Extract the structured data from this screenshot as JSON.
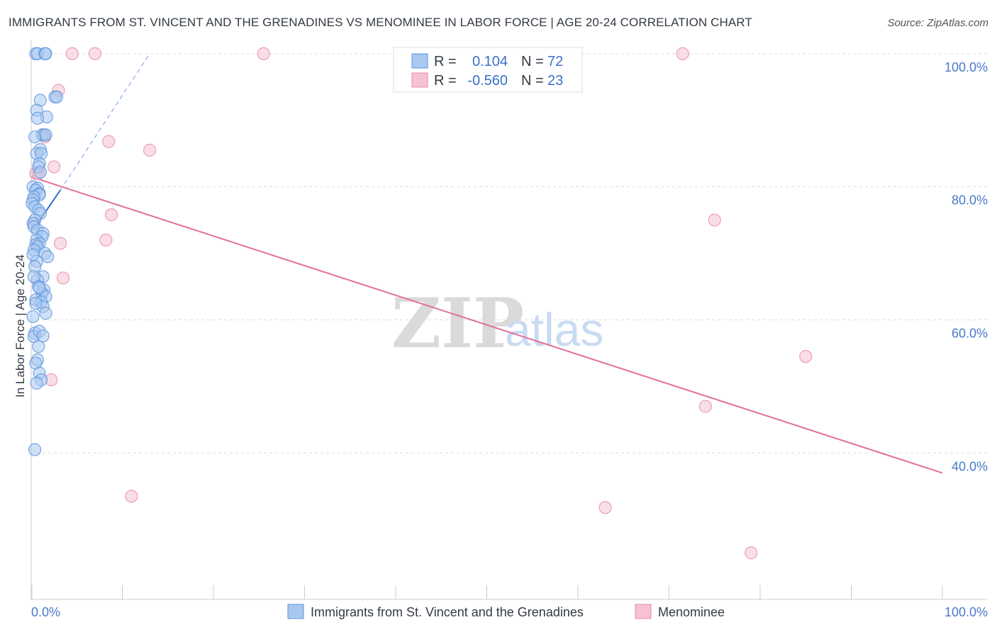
{
  "title": "IMMIGRANTS FROM ST. VINCENT AND THE GRENADINES VS MENOMINEE IN LABOR FORCE | AGE 20-24 CORRELATION CHART",
  "source": "Source: ZipAtlas.com",
  "watermark": {
    "zip": "ZIP",
    "atlas": "atlas"
  },
  "legend": {
    "r_label": "R =",
    "n_label": "N =",
    "series1": {
      "r": "0.104",
      "n": "72"
    },
    "series2": {
      "r": "-0.560",
      "n": "23"
    }
  },
  "colors": {
    "blue_fill": "#a9c8f0",
    "blue_stroke": "#5b93dc",
    "blue_line": "#2f6fd0",
    "pink_fill": "#f6c2d2",
    "pink_stroke": "#e88aa8",
    "pink_line": "#e0709a",
    "grid": "#dddddd",
    "tick_text": "#4a7ac8"
  },
  "chart_data": {
    "type": "scatter",
    "title": "IMMIGRANTS FROM ST. VINCENT AND THE GRENADINES VS MENOMINEE IN LABOR FORCE | AGE 20-24 CORRELATION CHART",
    "xlabel": "",
    "ylabel": "In Labor Force | Age 20-24",
    "xlim": [
      0,
      100
    ],
    "ylim": [
      18,
      102
    ],
    "x_tick_labels": [
      "0.0%",
      "100.0%"
    ],
    "y_ticks": [
      40,
      60,
      80,
      100
    ],
    "y_tick_labels": [
      "40.0%",
      "60.0%",
      "80.0%",
      "100.0%"
    ],
    "grid": true,
    "series": [
      {
        "name": "Immigrants from St. Vincent and the Grenadines",
        "color": "#5b93dc",
        "x": [
          0.5,
          0.7,
          1.5,
          1.6,
          2.6,
          2.8,
          1.0,
          0.6,
          1.7,
          0.7,
          1.2,
          1.4,
          1.6,
          0.4,
          1.0,
          0.6,
          1.1,
          0.9,
          0.8,
          1.0,
          0.2,
          0.7,
          0.5,
          0.9,
          0.9,
          0.3,
          0.2,
          0.1,
          0.4,
          0.8,
          1.0,
          0.4,
          0.2,
          0.3,
          0.7,
          1.3,
          1.2,
          0.6,
          0.9,
          0.5,
          0.7,
          0.3,
          1.5,
          1.8,
          0.6,
          0.4,
          1.3,
          0.7,
          1.4,
          1.2,
          1.6,
          0.5,
          1.1,
          1.3,
          1.6,
          0.2,
          0.4,
          0.3,
          0.8,
          0.7,
          0.5,
          0.9,
          1.1,
          0.6,
          0.3,
          0.8,
          0.9,
          0.2,
          0.5,
          0.9,
          0.4,
          1.3
        ],
        "y": [
          100.0,
          100.0,
          100.0,
          100.0,
          93.5,
          93.5,
          93.0,
          91.5,
          90.5,
          90.3,
          87.8,
          87.8,
          87.8,
          87.5,
          85.6,
          85.0,
          85.0,
          83.5,
          83.0,
          82.2,
          80.0,
          79.8,
          79.5,
          79.0,
          78.8,
          78.5,
          78.0,
          77.5,
          77.0,
          76.5,
          76.0,
          75.0,
          74.5,
          74.0,
          73.5,
          73.0,
          72.5,
          72.0,
          71.5,
          71.3,
          71.0,
          70.5,
          70.0,
          69.5,
          68.8,
          68.0,
          66.5,
          66.0,
          64.5,
          64.0,
          63.5,
          63.0,
          62.7,
          62.0,
          61.0,
          60.5,
          58.0,
          57.5,
          56.0,
          54.0,
          53.5,
          52.0,
          51.0,
          50.5,
          66.5,
          65.0,
          64.8,
          69.8,
          62.5,
          58.3,
          40.5,
          57.6
        ],
        "trend": {
          "x0": 0.2,
          "y0": 73.5,
          "x1": 3.2,
          "y1": 79.5,
          "dash_to_x": 13.0,
          "dash_to_y": 100.0
        }
      },
      {
        "name": "Menominee",
        "color": "#e88aa8",
        "x": [
          4.5,
          7.0,
          25.5,
          71.5,
          3.0,
          8.5,
          13.0,
          1.5,
          2.5,
          0.5,
          8.8,
          3.2,
          8.2,
          3.5,
          2.2,
          85.0,
          74.0,
          63.0,
          11.0,
          79.0,
          0.3,
          75.0,
          0.8
        ],
        "y": [
          100.0,
          100.0,
          100.0,
          100.0,
          94.5,
          86.8,
          85.5,
          87.5,
          83.0,
          82.0,
          75.8,
          71.5,
          72.0,
          66.3,
          51.0,
          54.5,
          47.0,
          31.8,
          33.5,
          25.0,
          74.5,
          75.0,
          82.0
        ],
        "trend": {
          "x0": 0.0,
          "y0": 81.5,
          "x1": 100.0,
          "y1": 37.0
        }
      }
    ]
  },
  "bottom_legend": {
    "series1_label": "Immigrants from St. Vincent and the Grenadines",
    "series2_label": "Menominee"
  }
}
